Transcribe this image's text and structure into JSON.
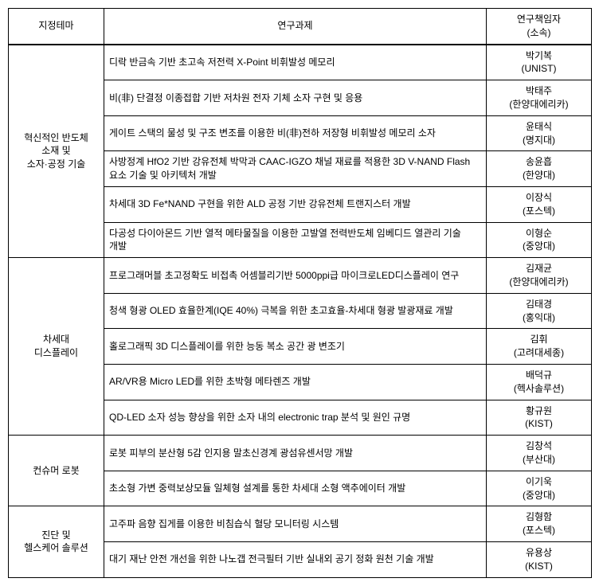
{
  "headers": {
    "theme": "지정테마",
    "task": "연구과제",
    "pi": "연구책임자\n(소속)"
  },
  "groups": [
    {
      "theme": "혁신적인 반도체\n소재 및\n소자·공정 기술",
      "rows": [
        {
          "task": "디락 반금속 기반 초고속 저전력 X-Point 비휘발성 메모리",
          "pi": "박기복\n(UNIST)"
        },
        {
          "task": "비(非) 단결정 이종접합 기반 저차원 전자 기체 소자 구현 및 응용",
          "pi": "박태주\n(한양대에리카)"
        },
        {
          "task": "게이트 스택의 물성 및 구조 변조를 이용한 비(非)전하 저장형 비휘발성 메모리 소자",
          "pi": "윤태식\n(명지대)"
        },
        {
          "task": "사방정계 HfO2 기반 강유전체 박막과 CAAC-IGZO 채널 재료를 적용한 3D V-NAND Flash 요소 기술 및 아키텍처 개발",
          "pi": "송윤흡\n(한양대)"
        },
        {
          "task": "차세대 3D Fe*NAND 구현을 위한 ALD 공정 기반 강유전체 트랜지스터 개발",
          "pi": "이장식\n(포스텍)"
        },
        {
          "task": "다공성 다이아몬드 기반 열적 메타물질을 이용한 고발열 전력반도체 임베디드 열관리 기술 개발",
          "pi": "이형순\n(중앙대)"
        }
      ]
    },
    {
      "theme": "차세대\n디스플레이",
      "rows": [
        {
          "task": "프로그래머블 초고정확도 비접촉 어셈블리기반 5000ppi급 마이크로LED디스플레이 연구",
          "pi": "김재균\n(한양대에리카)"
        },
        {
          "task": "청색 형광 OLED 효율한계(IQE 40%) 극복을 위한 초고효율-차세대 형광 발광재료 개발",
          "pi": "김태경\n(홍익대)"
        },
        {
          "task": "홀로그래픽 3D 디스플레이를 위한 능동 복소 공간 광 변조기",
          "pi": "김휘\n(고려대세종)"
        },
        {
          "task": "AR/VR용 Micro LED를 위한 초박형 메타렌즈 개발",
          "pi": "배덕규\n(헥사솔루션)"
        },
        {
          "task": "QD-LED 소자 성능 향상을 위한 소자 내의 electronic trap 분석 및 원인 규명",
          "pi": "황규원\n(KIST)"
        }
      ]
    },
    {
      "theme": "컨슈머 로봇",
      "rows": [
        {
          "task": "로봇 피부의 분산형 5감 인지용 말초신경계 광섬유센서망 개발",
          "pi": "김창석\n(부산대)"
        },
        {
          "task": "초소형 가변 중력보상모듈 일체형 설계를 통한 차세대 소형 액추에이터 개발",
          "pi": "이기욱\n(중앙대)"
        }
      ]
    },
    {
      "theme": "진단 및\n헬스케어 솔루션",
      "rows": [
        {
          "task": "고주파 음향 집게를 이용한 비침습식 혈당 모니터링 시스템",
          "pi": "김형함\n(포스텍)"
        },
        {
          "task": "대기 재난 안전 개선을 위한 나노갭 전극필터 기반 실내외 공기 정화 원천 기술 개발",
          "pi": "유용상\n(KIST)"
        }
      ]
    }
  ]
}
